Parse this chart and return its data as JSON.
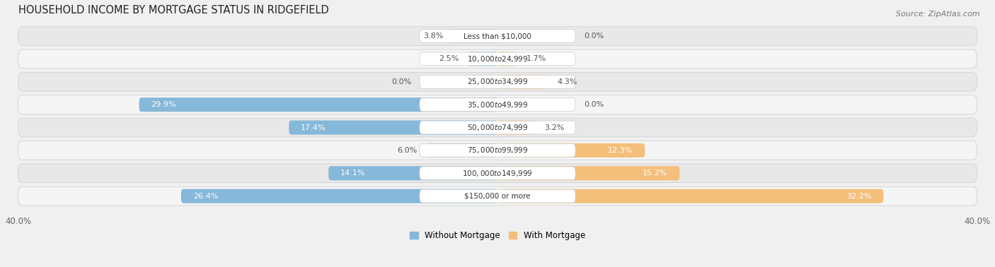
{
  "title": "HOUSEHOLD INCOME BY MORTGAGE STATUS IN RIDGEFIELD",
  "source": "Source: ZipAtlas.com",
  "categories": [
    "Less than $10,000",
    "$10,000 to $24,999",
    "$25,000 to $34,999",
    "$35,000 to $49,999",
    "$50,000 to $74,999",
    "$75,000 to $99,999",
    "$100,000 to $149,999",
    "$150,000 or more"
  ],
  "without_mortgage": [
    3.8,
    2.5,
    0.0,
    29.9,
    17.4,
    6.0,
    14.1,
    26.4
  ],
  "with_mortgage": [
    0.0,
    1.7,
    4.3,
    0.0,
    3.2,
    12.3,
    15.2,
    32.2
  ],
  "color_without": "#85B8D9",
  "color_with": "#F4BF7A",
  "xlim": 40.0,
  "bg_color": "#f0f0f0",
  "row_light": "#f5f5f5",
  "row_dark": "#e8e8e8",
  "legend_without": "Without Mortgage",
  "legend_with": "With Mortgage",
  "title_fontsize": 10.5,
  "source_fontsize": 8,
  "axis_label_fontsize": 8.5,
  "bar_label_fontsize": 8,
  "category_fontsize": 7.5
}
